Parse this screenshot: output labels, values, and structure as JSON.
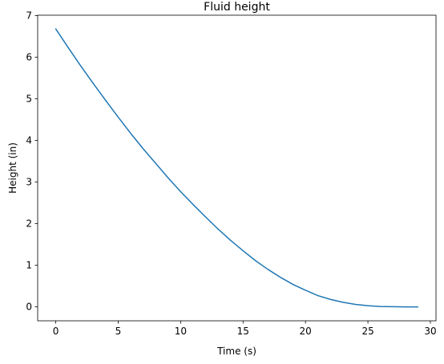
{
  "chart_data": {
    "type": "line",
    "title": "Fluid height",
    "xlabel": "Time (s)",
    "ylabel": "Height (in)",
    "xlim": [
      -1.45,
      30.45
    ],
    "ylim": [
      -0.334,
      7.01
    ],
    "xticks": [
      0,
      5,
      10,
      15,
      20,
      25,
      30
    ],
    "yticks": [
      0,
      1,
      2,
      3,
      4,
      5,
      6,
      7
    ],
    "grid": false,
    "series": [
      {
        "color": "#1f77b4",
        "x": [
          0,
          1,
          2,
          3,
          4,
          5,
          6,
          7,
          8,
          9,
          10,
          11,
          12,
          13,
          14,
          15,
          16,
          17,
          18,
          19,
          20,
          21,
          22,
          23,
          24,
          25,
          26,
          27,
          28,
          29
        ],
        "y": [
          6.68,
          6.23,
          5.79,
          5.37,
          4.96,
          4.56,
          4.17,
          3.8,
          3.45,
          3.1,
          2.77,
          2.46,
          2.16,
          1.87,
          1.6,
          1.35,
          1.11,
          0.9,
          0.71,
          0.54,
          0.4,
          0.27,
          0.18,
          0.11,
          0.06,
          0.03,
          0.01,
          0.004,
          0.001,
          0.0
        ]
      }
    ]
  }
}
